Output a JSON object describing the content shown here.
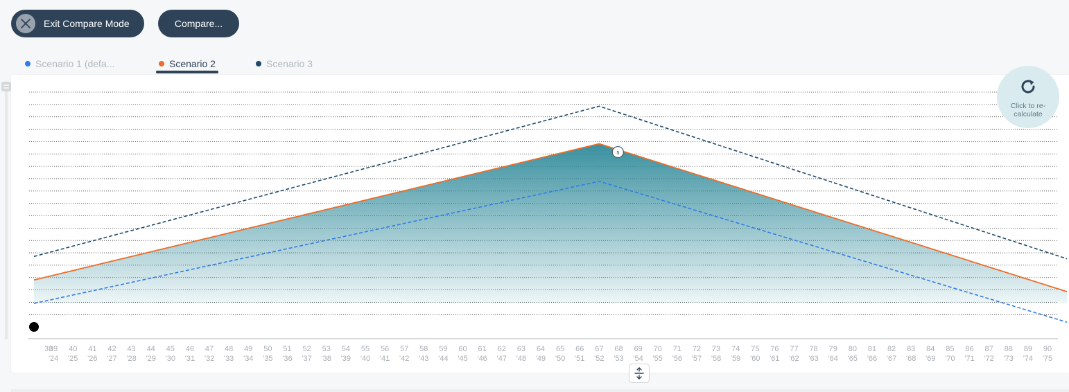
{
  "toolbar": {
    "exit_compare_label": "Exit Compare Mode",
    "compare_label": "Compare..."
  },
  "tabs": [
    {
      "label": "Scenario 1 (defa...",
      "dot_color": "#2f7ce8",
      "active": false
    },
    {
      "label": "Scenario 2",
      "dot_color": "#ec6d2a",
      "active": true
    },
    {
      "label": "Scenario 3",
      "dot_color": "#1d4a6b",
      "active": false
    }
  ],
  "recalculate": {
    "label": "Click to re-calculate",
    "icon": "refresh-icon"
  },
  "colors": {
    "dark": "#2e4258",
    "scenario1": "#2f7ce8",
    "scenario2": "#ec6d2a",
    "scenario3": "#1d4a6b",
    "area": "#2f8a9a"
  },
  "chart_data": {
    "type": "area",
    "title": "",
    "xlabel": "",
    "ylabel": "",
    "x_ages": [
      "38",
      "39",
      "40",
      "41",
      "42",
      "43",
      "44",
      "45",
      "46",
      "47",
      "48",
      "49",
      "50",
      "51",
      "52",
      "53",
      "54",
      "55",
      "56",
      "57",
      "58",
      "59",
      "60",
      "61",
      "62",
      "63",
      "64",
      "65",
      "66",
      "67",
      "68",
      "69",
      "70",
      "71",
      "72",
      "73",
      "74",
      "75",
      "76",
      "77",
      "78",
      "79",
      "80",
      "81",
      "82",
      "83",
      "84",
      "85",
      "86",
      "87",
      "88",
      "89",
      "90"
    ],
    "x_years": [
      "",
      "'24",
      "'25",
      "'26",
      "'27",
      "'28",
      "'29",
      "'30",
      "'31",
      "'32",
      "'33",
      "'34",
      "'35",
      "'36",
      "'37",
      "'38",
      "'39",
      "'40",
      "'41",
      "'42",
      "'43",
      "'44",
      "'45",
      "'46",
      "'47",
      "'48",
      "'49",
      "'50",
      "'51",
      "'52",
      "'53",
      "'54",
      "'55",
      "'56",
      "'57",
      "'58",
      "'59",
      "'60",
      "'61",
      "'62",
      "'63",
      "'64",
      "'65",
      "'66",
      "'67",
      "'68",
      "'69",
      "'70",
      "'71",
      "'72",
      "'73",
      "'74",
      "'75"
    ],
    "y_range": [
      0,
      100
    ],
    "grid": true,
    "marker_label": "s",
    "series": [
      {
        "name": "Scenario 1 (defa...",
        "style": "dashed",
        "points": [
          {
            "x": 0,
            "y": 10
          },
          {
            "x": 29,
            "y": 62
          },
          {
            "x": 53,
            "y": 2
          }
        ]
      },
      {
        "name": "Scenario 2",
        "style": "area",
        "points": [
          {
            "x": 0,
            "y": 20
          },
          {
            "x": 29,
            "y": 78
          },
          {
            "x": 53,
            "y": 15
          }
        ]
      },
      {
        "name": "Scenario 3",
        "style": "dashed",
        "points": [
          {
            "x": 0,
            "y": 30
          },
          {
            "x": 29,
            "y": 94
          },
          {
            "x": 53,
            "y": 29
          }
        ]
      }
    ]
  }
}
